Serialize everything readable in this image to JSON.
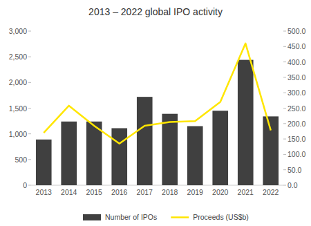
{
  "chart_data": {
    "type": "bar",
    "title": "2013 – 2022 global IPO activity",
    "categories": [
      "2013",
      "2014",
      "2015",
      "2016",
      "2017",
      "2018",
      "2019",
      "2020",
      "2021",
      "2022"
    ],
    "series": [
      {
        "name": "Number of IPOs",
        "type": "bar",
        "color": "#404040",
        "values": [
          890,
          1240,
          1240,
          1110,
          1720,
          1390,
          1150,
          1450,
          2440,
          1340
        ]
      },
      {
        "name": "Proceeds (US$b)",
        "type": "line",
        "color": "#ffe600",
        "axis": "y2",
        "values": [
          170,
          258,
          193,
          135,
          193,
          205,
          208,
          270,
          460,
          178
        ]
      }
    ],
    "ylim": [
      0,
      3000
    ],
    "yticks": [
      0,
      500,
      {
        "value": 1000,
        "label": "1,000"
      },
      {
        "value": 1500,
        "label": "1,500"
      },
      {
        "value": 2000,
        "label": "2,000"
      },
      {
        "value": 2500,
        "label": "2,500"
      },
      {
        "value": 3000,
        "label": "3,000"
      }
    ],
    "y2lim": [
      0,
      500
    ],
    "y2ticks": [
      {
        "value": 0,
        "label": "0.0"
      },
      {
        "value": 50,
        "label": "50.0"
      },
      {
        "value": 100,
        "label": "100.0"
      },
      {
        "value": 150,
        "label": "150.0"
      },
      {
        "value": 200,
        "label": "200.0"
      },
      {
        "value": 250,
        "label": "250.0"
      },
      {
        "value": 300,
        "label": "300.0"
      },
      {
        "value": 350,
        "label": "350.0"
      },
      {
        "value": 400,
        "label": "400.0"
      },
      {
        "value": 450,
        "label": "450.0"
      },
      {
        "value": 500,
        "label": "500.0"
      }
    ],
    "grid": false,
    "legend": "bottom"
  }
}
